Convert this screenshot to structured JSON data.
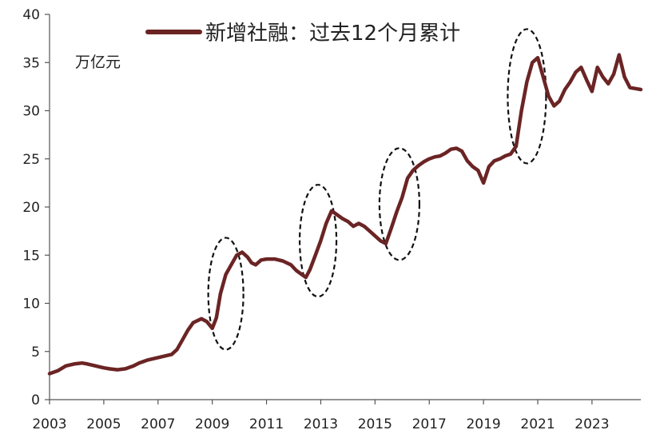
{
  "chart_data": {
    "type": "line",
    "title": "",
    "xlabel": "",
    "ylabel": "",
    "unit_label": "万亿元",
    "legend_position": "top-center",
    "grid": false,
    "xlim": [
      2003,
      2024.8
    ],
    "ylim": [
      0,
      40
    ],
    "x_ticks": [
      "2003",
      "2005",
      "2007",
      "2009",
      "2011",
      "2013",
      "2015",
      "2017",
      "2019",
      "2021",
      "2023"
    ],
    "y_ticks": [
      "0",
      "5",
      "10",
      "15",
      "20",
      "25",
      "30",
      "35",
      "40"
    ],
    "highlight_periods": [
      2009.5,
      2012.9,
      2015.9,
      2020.6
    ],
    "series": [
      {
        "name": "新增社融：过去12个月累计",
        "color": "#6b2424",
        "points": [
          [
            2003.0,
            2.7
          ],
          [
            2003.3,
            3.0
          ],
          [
            2003.6,
            3.5
          ],
          [
            2003.9,
            3.7
          ],
          [
            2004.2,
            3.8
          ],
          [
            2004.4,
            3.7
          ],
          [
            2004.7,
            3.5
          ],
          [
            2005.0,
            3.3
          ],
          [
            2005.2,
            3.2
          ],
          [
            2005.5,
            3.1
          ],
          [
            2005.8,
            3.2
          ],
          [
            2006.1,
            3.5
          ],
          [
            2006.3,
            3.8
          ],
          [
            2006.6,
            4.1
          ],
          [
            2006.9,
            4.3
          ],
          [
            2007.2,
            4.5
          ],
          [
            2007.5,
            4.7
          ],
          [
            2007.7,
            5.2
          ],
          [
            2007.9,
            6.2
          ],
          [
            2008.1,
            7.2
          ],
          [
            2008.3,
            8.0
          ],
          [
            2008.6,
            8.4
          ],
          [
            2008.8,
            8.1
          ],
          [
            2009.0,
            7.4
          ],
          [
            2009.15,
            8.5
          ],
          [
            2009.3,
            11.0
          ],
          [
            2009.5,
            13.0
          ],
          [
            2009.7,
            14.0
          ],
          [
            2009.9,
            15.0
          ],
          [
            2010.1,
            15.3
          ],
          [
            2010.3,
            14.8
          ],
          [
            2010.45,
            14.2
          ],
          [
            2010.6,
            14.0
          ],
          [
            2010.8,
            14.5
          ],
          [
            2011.0,
            14.6
          ],
          [
            2011.3,
            14.6
          ],
          [
            2011.6,
            14.4
          ],
          [
            2011.9,
            14.0
          ],
          [
            2012.1,
            13.4
          ],
          [
            2012.3,
            13.0
          ],
          [
            2012.45,
            12.7
          ],
          [
            2012.6,
            13.5
          ],
          [
            2012.8,
            15.0
          ],
          [
            2013.0,
            16.5
          ],
          [
            2013.2,
            18.3
          ],
          [
            2013.4,
            19.6
          ],
          [
            2013.6,
            19.2
          ],
          [
            2013.8,
            18.8
          ],
          [
            2014.0,
            18.5
          ],
          [
            2014.2,
            18.0
          ],
          [
            2014.4,
            18.3
          ],
          [
            2014.6,
            18.0
          ],
          [
            2014.8,
            17.5
          ],
          [
            2015.0,
            17.0
          ],
          [
            2015.2,
            16.5
          ],
          [
            2015.4,
            16.2
          ],
          [
            2015.6,
            17.8
          ],
          [
            2015.8,
            19.5
          ],
          [
            2016.0,
            21.0
          ],
          [
            2016.2,
            23.0
          ],
          [
            2016.4,
            23.8
          ],
          [
            2016.6,
            24.3
          ],
          [
            2016.8,
            24.7
          ],
          [
            2017.0,
            25.0
          ],
          [
            2017.2,
            25.2
          ],
          [
            2017.4,
            25.3
          ],
          [
            2017.6,
            25.6
          ],
          [
            2017.8,
            26.0
          ],
          [
            2018.0,
            26.1
          ],
          [
            2018.2,
            25.8
          ],
          [
            2018.4,
            24.8
          ],
          [
            2018.6,
            24.2
          ],
          [
            2018.8,
            23.8
          ],
          [
            2019.0,
            22.5
          ],
          [
            2019.2,
            24.2
          ],
          [
            2019.4,
            24.8
          ],
          [
            2019.6,
            25.0
          ],
          [
            2019.8,
            25.3
          ],
          [
            2020.0,
            25.5
          ],
          [
            2020.2,
            26.3
          ],
          [
            2020.4,
            30.0
          ],
          [
            2020.6,
            33.0
          ],
          [
            2020.8,
            35.0
          ],
          [
            2021.0,
            35.5
          ],
          [
            2021.2,
            33.5
          ],
          [
            2021.4,
            31.5
          ],
          [
            2021.6,
            30.5
          ],
          [
            2021.8,
            31.0
          ],
          [
            2022.0,
            32.2
          ],
          [
            2022.2,
            33.0
          ],
          [
            2022.4,
            34.0
          ],
          [
            2022.6,
            34.5
          ],
          [
            2022.8,
            33.2
          ],
          [
            2023.0,
            32.0
          ],
          [
            2023.2,
            34.5
          ],
          [
            2023.4,
            33.5
          ],
          [
            2023.6,
            32.8
          ],
          [
            2023.8,
            33.8
          ],
          [
            2024.0,
            35.8
          ],
          [
            2024.2,
            33.5
          ],
          [
            2024.4,
            32.4
          ],
          [
            2024.6,
            32.3
          ],
          [
            2024.8,
            32.2
          ]
        ]
      }
    ]
  }
}
